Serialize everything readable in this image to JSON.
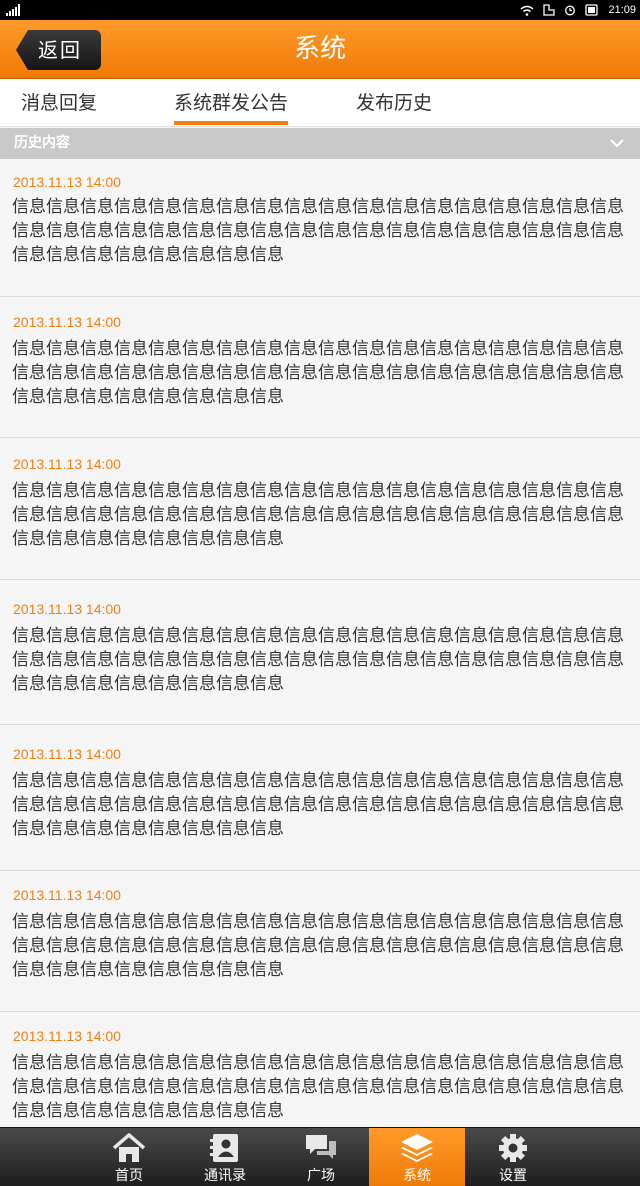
{
  "status_bar": {
    "time": "21:09"
  },
  "header": {
    "back_label": "返回",
    "title": "系统"
  },
  "tabs": [
    {
      "label": "消息回复",
      "active": false
    },
    {
      "label": "系统群发公告",
      "active": true
    },
    {
      "label": "发布历史",
      "active": false
    }
  ],
  "section": {
    "title": "历史内容"
  },
  "items": [
    {
      "time": "2013.11.13 14:00",
      "content": "信息信息信息信息信息信息信息信息信息信息信息信息信息信息信息信息信息信息信息信息信息信息信息信息信息信息信息信息信息信息信息信息信息信息信息信息信息信息信息信息信息信息信息信息"
    },
    {
      "time": "2013.11.13 14:00",
      "content": "信息信息信息信息信息信息信息信息信息信息信息信息信息信息信息信息信息信息信息信息信息信息信息信息信息信息信息信息信息信息信息信息信息信息信息信息信息信息信息信息信息信息信息信息"
    },
    {
      "time": "2013.11.13 14:00",
      "content": "信息信息信息信息信息信息信息信息信息信息信息信息信息信息信息信息信息信息信息信息信息信息信息信息信息信息信息信息信息信息信息信息信息信息信息信息信息信息信息信息信息信息信息信息"
    },
    {
      "time": "2013.11.13 14:00",
      "content": "信息信息信息信息信息信息信息信息信息信息信息信息信息信息信息信息信息信息信息信息信息信息信息信息信息信息信息信息信息信息信息信息信息信息信息信息信息信息信息信息信息信息信息信息"
    },
    {
      "time": "2013.11.13 14:00",
      "content": "信息信息信息信息信息信息信息信息信息信息信息信息信息信息信息信息信息信息信息信息信息信息信息信息信息信息信息信息信息信息信息信息信息信息信息信息信息信息信息信息信息信息信息信息"
    },
    {
      "time": "2013.11.13 14:00",
      "content": "信息信息信息信息信息信息信息信息信息信息信息信息信息信息信息信息信息信息信息信息信息信息信息信息信息信息信息信息信息信息信息信息信息信息信息信息信息信息信息信息信息信息信息信息"
    },
    {
      "time": "2013.11.13 14:00",
      "content": "信息信息信息信息信息信息信息信息信息信息信息信息信息信息信息信息信息信息信息信息信息信息信息信息信息信息信息信息信息信息信息信息信息信息信息信息信息信息信息信息信息信息信息信息"
    }
  ],
  "bottom_nav": [
    {
      "label": "首页",
      "icon": "home-icon",
      "active": false
    },
    {
      "label": "通讯录",
      "icon": "contacts-icon",
      "active": false
    },
    {
      "label": "广场",
      "icon": "chat-bubbles-icon",
      "active": false
    },
    {
      "label": "系统",
      "icon": "layers-icon",
      "active": true
    },
    {
      "label": "设置",
      "icon": "gear-icon",
      "active": false
    }
  ],
  "colors": {
    "accent": "#f07f13",
    "header": "#f58a1a",
    "nav_bg": "#2a2a2a"
  }
}
